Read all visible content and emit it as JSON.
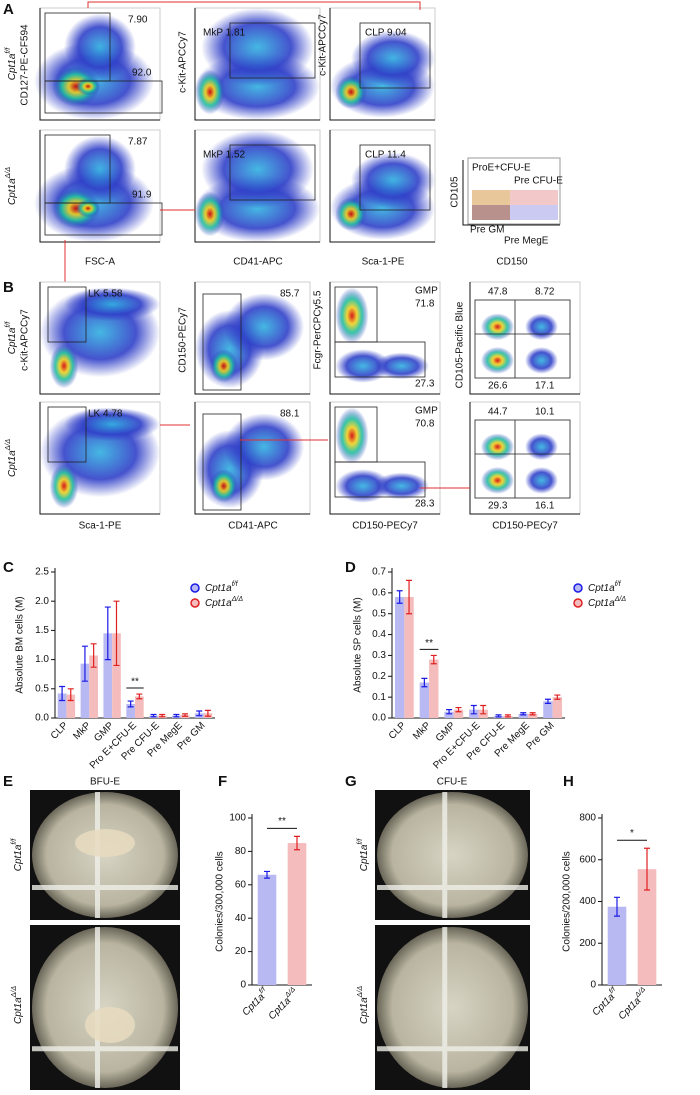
{
  "panels": [
    "A",
    "B",
    "C",
    "D",
    "E",
    "F",
    "G",
    "H"
  ],
  "genotypes": [
    {
      "base": "Cpt1a",
      "sup": "f/f"
    },
    {
      "base": "Cpt1a",
      "sup": "Δ/Δ"
    }
  ],
  "panel_a": {
    "y_labels": [
      "CD127-PE-CF594",
      "c-Kit-APCCy7",
      "c-Kit-APCCy7"
    ],
    "x_labels": [
      "FSC-A",
      "CD41-APC",
      "Sca-1-PE"
    ],
    "gates": [
      [
        "7.90",
        "92.0",
        "MkP 1.81",
        "CLP 9.04"
      ],
      [
        "7.87",
        "91.9",
        "MkP 1.52",
        "CLP 11.4"
      ]
    ],
    "diagram": {
      "labels": [
        "ProE+CFU-E",
        "Pre CFU-E",
        "Pre GM",
        "Pre MegE"
      ],
      "x_label": "CD150",
      "y_label": "CD105"
    }
  },
  "panel_b": {
    "y_labels": [
      "c-Kit-APCCy7",
      "CD150-PECy7",
      "Fcgr-PerCPCy5.5",
      "CD105-Pacific Blue"
    ],
    "x_labels": [
      "Sca-1-PE",
      "CD41-APC",
      "CD150-PECy7",
      "CD150-PECy7"
    ],
    "gates": [
      [
        "LK 5.58",
        "85.7",
        "GMP",
        "71.8",
        "27.3",
        "47.8",
        "8.72",
        "26.6",
        "17.1"
      ],
      [
        "LK 4.78",
        "88.1",
        "GMP",
        "70.8",
        "28.3",
        "44.7",
        "10.1",
        "29.3",
        "16.1"
      ]
    ]
  },
  "panel_e": {
    "title": "BFU-E"
  },
  "panel_g": {
    "title": "CFU-E"
  },
  "chart_data": [
    {
      "type": "bar",
      "y_label": "Absolute BM cells (M)",
      "categories": [
        "CLP",
        "MkP",
        "GMP",
        "Pro E+CFU-E",
        "Pre CFU-E",
        "Pre MegE",
        "Pre GM"
      ],
      "series": [
        {
          "name": "Cpt1a",
          "name_sup": "f/f",
          "color": "#1a1ae6",
          "bar_color": "#b8b8f2",
          "values": [
            0.42,
            0.93,
            1.45,
            0.24,
            0.04,
            0.04,
            0.08
          ],
          "errors": [
            0.12,
            0.3,
            0.45,
            0.05,
            0.02,
            0.02,
            0.04
          ]
        },
        {
          "name": "Cpt1a",
          "name_sup": "Δ/Δ",
          "color": "#e02020",
          "bar_color": "#f4bcbc",
          "values": [
            0.4,
            1.07,
            1.45,
            0.37,
            0.04,
            0.05,
            0.08
          ],
          "errors": [
            0.1,
            0.2,
            0.55,
            0.04,
            0.02,
            0.02,
            0.05
          ]
        }
      ],
      "ylim": [
        0,
        2.5
      ],
      "yticks": [
        {
          "value": 0,
          "label": "0.0"
        },
        {
          "value": 0.5,
          "label": "0.5"
        },
        {
          "value": 1,
          "label": "1.0"
        },
        {
          "value": 1.5,
          "label": "1.5"
        },
        {
          "value": 2,
          "label": "2.0"
        },
        {
          "value": 2.5,
          "label": "2.5"
        }
      ],
      "annotation": "**"
    },
    {
      "type": "bar",
      "y_label": "Absolute SP cells (M)",
      "categories": [
        "CLP",
        "MkP",
        "GMP",
        "Pro E+CFU-E",
        "Pre CFU-E",
        "Pre MegE",
        "Pre GM"
      ],
      "series": [
        {
          "name": "Cpt1a",
          "name_sup": "f/f",
          "color": "#1a1ae6",
          "bar_color": "#b8b8f2",
          "values": [
            0.58,
            0.17,
            0.03,
            0.04,
            0.01,
            0.02,
            0.08
          ],
          "errors": [
            0.03,
            0.02,
            0.01,
            0.02,
            0.005,
            0.005,
            0.01
          ]
        },
        {
          "name": "Cpt1a",
          "name_sup": "Δ/Δ",
          "color": "#e02020",
          "bar_color": "#f4bcbc",
          "values": [
            0.58,
            0.28,
            0.04,
            0.04,
            0.01,
            0.02,
            0.1
          ],
          "errors": [
            0.08,
            0.02,
            0.01,
            0.02,
            0.005,
            0.005,
            0.01
          ]
        }
      ],
      "ylim": [
        0,
        0.7
      ],
      "yticks": [
        {
          "value": 0,
          "label": "0.0"
        },
        {
          "value": 0.1,
          "label": "0.1"
        },
        {
          "value": 0.2,
          "label": "0.2"
        },
        {
          "value": 0.3,
          "label": "0.3"
        },
        {
          "value": 0.4,
          "label": "0.4"
        },
        {
          "value": 0.5,
          "label": "0.5"
        },
        {
          "value": 0.6,
          "label": "0.6"
        },
        {
          "value": 0.7,
          "label": "0.7"
        }
      ],
      "annotation": "**"
    },
    {
      "type": "bar",
      "y_label": "Colonies/300,000 cells",
      "categories": [
        "Cpt1a",
        "Cpt1a"
      ],
      "category_sups": [
        "f/f",
        "Δ/Δ"
      ],
      "values": [
        66,
        85
      ],
      "errors": [
        2,
        4
      ],
      "colors": [
        "#1a1ae6",
        "#e02020"
      ],
      "bar_colors": [
        "#b8b8f2",
        "#f4bcbc"
      ],
      "ylim": [
        0,
        100
      ],
      "yticks": [
        0,
        20,
        40,
        60,
        80,
        100
      ],
      "annotation": "**"
    },
    {
      "type": "bar",
      "y_label": "Colonies/200,000 cells",
      "categories": [
        "Cpt1a",
        "Cpt1a"
      ],
      "category_sups": [
        "f/f",
        "Δ/Δ"
      ],
      "values": [
        375,
        555
      ],
      "errors": [
        45,
        100
      ],
      "colors": [
        "#1a1ae6",
        "#e02020"
      ],
      "bar_colors": [
        "#b8b8f2",
        "#f4bcbc"
      ],
      "ylim": [
        0,
        800
      ],
      "yticks": [
        0,
        200,
        400,
        600,
        800
      ],
      "annotation": "*"
    }
  ]
}
